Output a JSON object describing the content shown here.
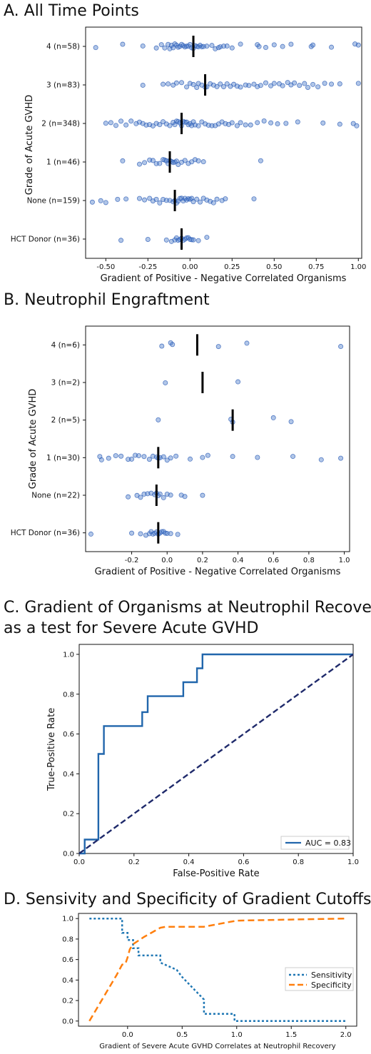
{
  "chart_data": [
    {
      "type": "scatter",
      "title": "A. All Time Points",
      "xlabel": "Gradient of Positive - Negative Correlated Organisms",
      "ylabel": "Grade of Acute GVHD",
      "xlim": [
        -0.62,
        1.02
      ],
      "xticks": [
        "-0.50",
        "-0.25",
        "0.00",
        "0.25",
        "0.50",
        "0.75",
        "1.00"
      ],
      "xtick_values": [
        -0.5,
        -0.25,
        0,
        0.25,
        0.5,
        0.75,
        1.0
      ],
      "categories": [
        "4 (n=58)",
        "3 (n=83)",
        "2 (n=348)",
        "1 (n=46)",
        "None (n=159)",
        "HCT Donor (n=36)"
      ],
      "medians": [
        0.02,
        0.09,
        -0.05,
        -0.12,
        -0.09,
        -0.05
      ],
      "series": [
        {
          "values": [
            -0.56,
            -0.4,
            -0.28,
            -0.2,
            -0.17,
            -0.15,
            -0.13,
            -0.12,
            -0.11,
            -0.1,
            -0.09,
            -0.08,
            -0.07,
            -0.06,
            -0.05,
            -0.04,
            -0.03,
            -0.02,
            -0.01,
            0.0,
            0.01,
            0.02,
            0.03,
            0.04,
            0.05,
            0.06,
            0.07,
            0.08,
            0.1,
            0.13,
            0.15,
            0.17,
            0.18,
            0.2,
            0.22,
            0.25,
            0.3,
            0.4,
            0.41,
            0.45,
            0.5,
            0.55,
            0.6,
            0.72,
            0.73,
            0.84,
            0.98,
            1.0
          ]
        },
        {
          "values": [
            -0.28,
            -0.16,
            -0.13,
            -0.1,
            -0.08,
            -0.05,
            -0.02,
            0.0,
            0.02,
            0.04,
            0.05,
            0.07,
            0.09,
            0.1,
            0.12,
            0.14,
            0.16,
            0.18,
            0.2,
            0.22,
            0.24,
            0.26,
            0.28,
            0.3,
            0.33,
            0.35,
            0.38,
            0.4,
            0.42,
            0.45,
            0.48,
            0.5,
            0.53,
            0.55,
            0.58,
            0.6,
            0.62,
            0.65,
            0.68,
            0.7,
            0.73,
            0.76,
            0.8,
            0.84,
            0.89,
            1.0
          ]
        },
        {
          "values": [
            -0.5,
            -0.47,
            -0.44,
            -0.41,
            -0.38,
            -0.35,
            -0.32,
            -0.3,
            -0.28,
            -0.26,
            -0.24,
            -0.22,
            -0.2,
            -0.18,
            -0.16,
            -0.14,
            -0.12,
            -0.1,
            -0.09,
            -0.08,
            -0.07,
            -0.06,
            -0.05,
            -0.04,
            -0.03,
            -0.02,
            -0.01,
            0.0,
            0.01,
            0.02,
            0.03,
            0.05,
            0.07,
            0.09,
            0.11,
            0.13,
            0.15,
            0.17,
            0.19,
            0.21,
            0.23,
            0.25,
            0.28,
            0.3,
            0.33,
            0.36,
            0.4,
            0.44,
            0.48,
            0.52,
            0.57,
            0.64,
            0.79,
            0.89,
            0.97,
            0.99
          ]
        },
        {
          "values": [
            -0.4,
            -0.3,
            -0.27,
            -0.24,
            -0.22,
            -0.2,
            -0.18,
            -0.16,
            -0.15,
            -0.14,
            -0.13,
            -0.12,
            -0.11,
            -0.1,
            -0.09,
            -0.08,
            -0.07,
            -0.05,
            -0.03,
            -0.01,
            0.01,
            0.03,
            0.05,
            0.08,
            0.42
          ]
        },
        {
          "values": [
            -0.58,
            -0.53,
            -0.5,
            -0.43,
            -0.38,
            -0.3,
            -0.27,
            -0.24,
            -0.22,
            -0.2,
            -0.18,
            -0.16,
            -0.14,
            -0.12,
            -0.1,
            -0.09,
            -0.08,
            -0.07,
            -0.06,
            -0.05,
            -0.04,
            -0.03,
            -0.02,
            -0.01,
            0.0,
            0.01,
            0.02,
            0.04,
            0.06,
            0.08,
            0.1,
            0.12,
            0.14,
            0.16,
            0.19,
            0.21,
            0.38
          ]
        },
        {
          "values": [
            -0.41,
            -0.25,
            -0.14,
            -0.11,
            -0.09,
            -0.08,
            -0.07,
            -0.06,
            -0.05,
            -0.04,
            -0.03,
            -0.02,
            -0.01,
            0.0,
            0.01,
            0.02,
            0.05,
            0.1
          ]
        }
      ]
    },
    {
      "type": "scatter",
      "title": "B. Neutrophil Engraftment",
      "xlabel": "Gradient of Positive - Negative Correlated Organisms",
      "ylabel": "Grade of Acute GVHD",
      "xlim": [
        -0.46,
        1.03
      ],
      "xticks": [
        "-0.2",
        "0.0",
        "0.2",
        "0.4",
        "0.6",
        "0.8",
        "1.0"
      ],
      "xtick_values": [
        -0.2,
        0.0,
        0.2,
        0.4,
        0.6,
        0.8,
        1.0
      ],
      "categories": [
        "4 (n=6)",
        "3 (n=2)",
        "2 (n=5)",
        "1 (n=30)",
        "None (n=22)",
        "HCT Donor (n=36)"
      ],
      "medians": [
        0.17,
        0.2,
        0.37,
        -0.05,
        -0.06,
        -0.05
      ],
      "series": [
        {
          "values": [
            -0.03,
            0.02,
            0.03,
            0.29,
            0.45,
            0.98
          ]
        },
        {
          "values": [
            -0.01,
            0.4
          ]
        },
        {
          "values": [
            -0.05,
            0.36,
            0.37,
            0.6,
            0.7
          ]
        },
        {
          "values": [
            -0.38,
            -0.37,
            -0.33,
            -0.29,
            -0.26,
            -0.22,
            -0.2,
            -0.18,
            -0.16,
            -0.13,
            -0.1,
            -0.08,
            -0.06,
            -0.05,
            -0.04,
            -0.02,
            0.0,
            0.02,
            0.05,
            0.13,
            0.2,
            0.23,
            0.37,
            0.51,
            0.71,
            0.87,
            0.98
          ]
        },
        {
          "values": [
            -0.22,
            -0.17,
            -0.15,
            -0.13,
            -0.11,
            -0.09,
            -0.07,
            -0.06,
            -0.05,
            -0.04,
            -0.02,
            0.0,
            0.02,
            0.08,
            0.1,
            0.2
          ]
        },
        {
          "values": [
            -0.43,
            -0.2,
            -0.15,
            -0.12,
            -0.1,
            -0.09,
            -0.08,
            -0.07,
            -0.06,
            -0.05,
            -0.04,
            -0.03,
            -0.02,
            -0.01,
            0.0,
            0.02,
            0.06
          ]
        }
      ]
    },
    {
      "type": "line",
      "title": "C. Gradient of Organisms at Neutrophil Recovery",
      "subtitle": "as a test for Severe Acute GVHD",
      "xlabel": "False-Positive Rate",
      "ylabel": "True-Positive Rate",
      "xlim": [
        0,
        1
      ],
      "ylim": [
        0,
        1.05
      ],
      "xticks": [
        "0.0",
        "0.2",
        "0.4",
        "0.6",
        "0.8",
        "1.0"
      ],
      "xtick_values": [
        0,
        0.2,
        0.4,
        0.6,
        0.8,
        1.0
      ],
      "yticks": [
        "0.0",
        "0.2",
        "0.4",
        "0.6",
        "0.8",
        "1.0"
      ],
      "ytick_values": [
        0,
        0.2,
        0.4,
        0.6,
        0.8,
        1.0
      ],
      "legend_position": "bottom-right",
      "series": [
        {
          "name": "AUC = 0.83",
          "x": [
            0.0,
            0.02,
            0.02,
            0.07,
            0.07,
            0.09,
            0.09,
            0.23,
            0.23,
            0.25,
            0.25,
            0.38,
            0.38,
            0.43,
            0.43,
            0.45,
            0.45,
            1.0
          ],
          "y": [
            0.0,
            0.0,
            0.07,
            0.07,
            0.5,
            0.5,
            0.64,
            0.64,
            0.71,
            0.71,
            0.79,
            0.79,
            0.86,
            0.86,
            0.93,
            0.93,
            1.0,
            1.0
          ]
        },
        {
          "x": [
            0,
            1
          ],
          "y": [
            0,
            1
          ]
        }
      ]
    },
    {
      "type": "line",
      "title": "D. Sensivity and Specificity of Gradient Cutoffs",
      "xlabel": "Gradient of Severe Acute GVHD Correlates at Neutrophil Recovery",
      "ylabel": "",
      "xlim": [
        -0.45,
        2.1
      ],
      "ylim": [
        -0.05,
        1.05
      ],
      "xticks": [
        "0.0",
        "0.5",
        "1.0",
        "1.5",
        "2.0"
      ],
      "xtick_values": [
        0,
        0.5,
        1.0,
        1.5,
        2.0
      ],
      "yticks": [
        "0.0",
        "0.2",
        "0.4",
        "0.6",
        "0.8",
        "1.0"
      ],
      "ytick_values": [
        0,
        0.2,
        0.4,
        0.6,
        0.8,
        1.0
      ],
      "legend_position": "right",
      "series": [
        {
          "name": "Sensitivity",
          "x": [
            -0.35,
            -0.05,
            -0.05,
            0.0,
            0.0,
            0.05,
            0.05,
            0.1,
            0.1,
            0.3,
            0.3,
            0.45,
            0.5,
            0.7,
            0.7,
            0.98,
            0.98,
            2.0
          ],
          "y": [
            1.0,
            1.0,
            0.86,
            0.86,
            0.79,
            0.79,
            0.71,
            0.71,
            0.64,
            0.64,
            0.57,
            0.5,
            0.43,
            0.21,
            0.07,
            0.07,
            0.0,
            0.0
          ]
        },
        {
          "name": "Specificity",
          "x": [
            -0.35,
            -0.1,
            -0.05,
            -0.02,
            0.0,
            0.02,
            0.05,
            0.15,
            0.25,
            0.3,
            0.35,
            0.5,
            0.7,
            0.9,
            1.0,
            1.5,
            2.0
          ],
          "y": [
            0.0,
            0.45,
            0.55,
            0.56,
            0.62,
            0.7,
            0.75,
            0.82,
            0.88,
            0.91,
            0.92,
            0.92,
            0.92,
            0.96,
            0.98,
            0.99,
            1.0
          ]
        }
      ]
    }
  ]
}
